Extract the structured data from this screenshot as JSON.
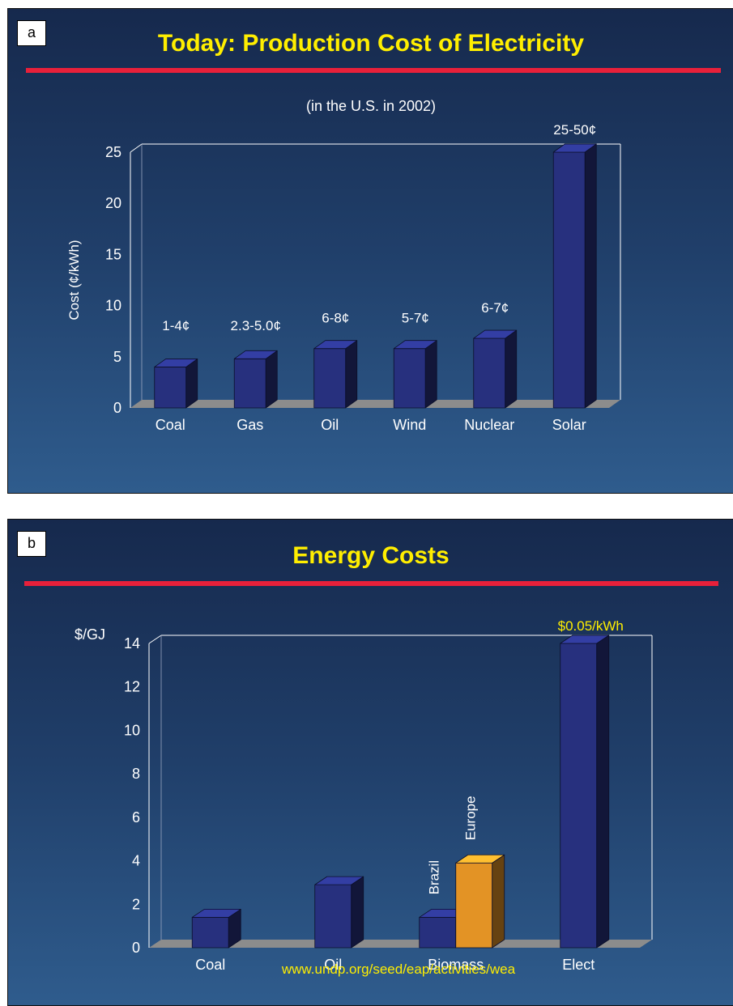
{
  "chart_data": [
    {
      "type": "bar",
      "panel_label": "a",
      "title": "Today: Production Cost of Electricity",
      "subtitle": "(in the U.S. in 2002)",
      "xlabel": "",
      "ylabel": "Cost (¢/kWh)",
      "ylim": [
        0,
        25
      ],
      "yticks": [
        "0",
        "5",
        "10",
        "15",
        "20",
        "25"
      ],
      "grid": false,
      "categories": [
        "Coal",
        "Gas",
        "Oil",
        "Wind",
        "Nuclear",
        "Solar"
      ],
      "values": [
        4,
        4.8,
        5.8,
        5.8,
        6.8,
        25
      ],
      "data_labels": [
        "1-4¢",
        "2.3-5.0¢",
        "6-8¢",
        "5-7¢",
        "6-7¢",
        "25-50¢"
      ],
      "colors": {
        "bar": "#27307e",
        "label": "#ffffff"
      }
    },
    {
      "type": "bar",
      "panel_label": "b",
      "title": "Energy Costs",
      "xlabel": "",
      "ylabel": "$/GJ",
      "ylim": [
        0,
        14
      ],
      "yticks": [
        "0",
        "2",
        "4",
        "6",
        "8",
        "10",
        "12",
        "14"
      ],
      "grid": false,
      "categories": [
        "Coal",
        "Oil",
        "Biomass",
        "Elect"
      ],
      "bars": [
        {
          "category": "Coal",
          "value": 1.4,
          "color": "#27307e"
        },
        {
          "category": "Oil",
          "value": 2.9,
          "color": "#27307e"
        },
        {
          "category": "Biomass",
          "value": 1.4,
          "color": "#27307e",
          "label": "Brazil"
        },
        {
          "category": "Biomass",
          "value": 3.9,
          "color": "#e39325",
          "label": "Europe"
        },
        {
          "category": "Elect",
          "value": 14,
          "color": "#27307e",
          "label": "$0.05/kWh"
        }
      ],
      "source": "www.undp.org/seed/eap/activities/wea"
    }
  ]
}
